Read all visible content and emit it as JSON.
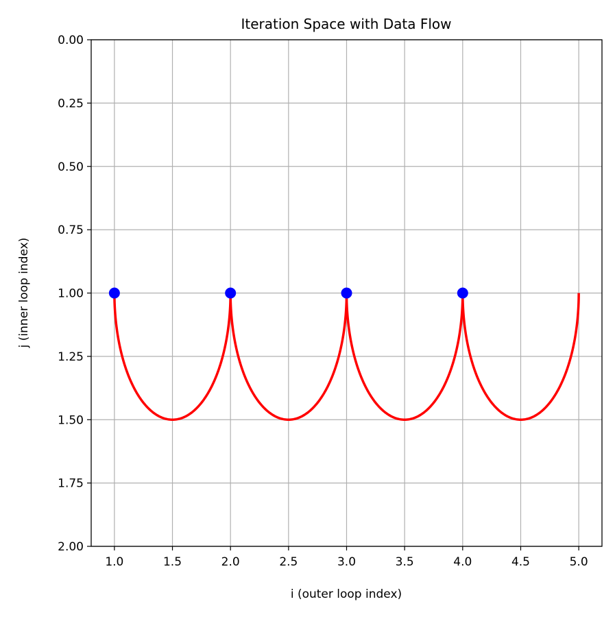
{
  "chart_data": {
    "type": "line",
    "title": "Iteration Space with Data Flow",
    "xlabel": "i (outer loop index)",
    "ylabel": "j (inner loop index)",
    "xlim": [
      0.8,
      5.2
    ],
    "ylim": [
      2.0,
      0.0
    ],
    "y_inverted": true,
    "grid": true,
    "xticks": [
      "1.0",
      "1.5",
      "2.0",
      "2.5",
      "3.0",
      "3.5",
      "4.0",
      "4.5",
      "5.0"
    ],
    "xtick_values": [
      1.0,
      1.5,
      2.0,
      2.5,
      3.0,
      3.5,
      4.0,
      4.5,
      5.0
    ],
    "yticks": [
      "0.00",
      "0.25",
      "0.50",
      "0.75",
      "1.00",
      "1.25",
      "1.50",
      "1.75",
      "2.00"
    ],
    "ytick_values": [
      0,
      0.25,
      0.5,
      0.75,
      1.0,
      1.25,
      1.5,
      1.75,
      2.0
    ],
    "points": {
      "name": "iterations",
      "color": "#0000ff",
      "x": [
        1,
        2,
        3,
        4
      ],
      "y": [
        1,
        1,
        1,
        1
      ]
    },
    "arcs": {
      "name": "data flow",
      "color": "#ff0000",
      "segments": [
        {
          "from": [
            1,
            1
          ],
          "to": [
            2,
            1
          ],
          "depth": 0.5
        },
        {
          "from": [
            2,
            1
          ],
          "to": [
            3,
            1
          ],
          "depth": 0.5
        },
        {
          "from": [
            3,
            1
          ],
          "to": [
            4,
            1
          ],
          "depth": 0.5
        },
        {
          "from": [
            4,
            1
          ],
          "to": [
            5,
            1
          ],
          "depth": 0.5
        }
      ]
    }
  }
}
